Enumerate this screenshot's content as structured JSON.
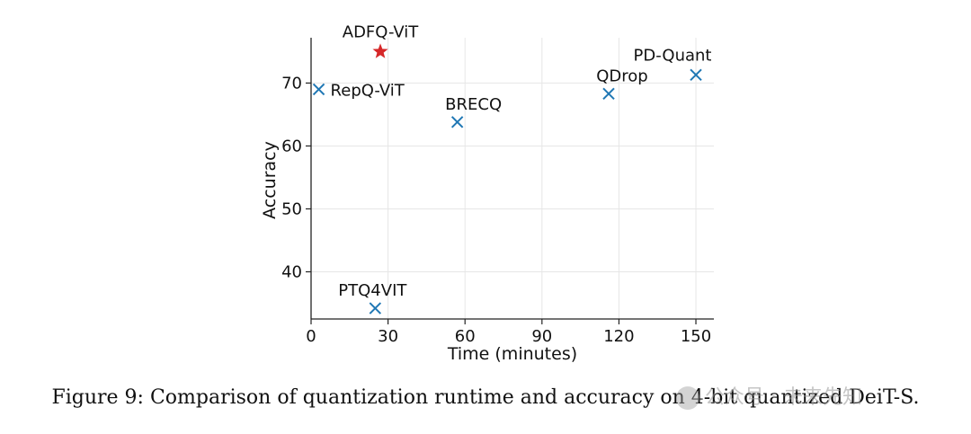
{
  "chart_data": {
    "type": "scatter",
    "xlabel": "Time (minutes)",
    "ylabel": "Accuracy",
    "xlim": [
      0,
      157
    ],
    "ylim": [
      32.5,
      77.2
    ],
    "xticks": [
      0,
      30,
      60,
      90,
      120,
      150
    ],
    "yticks": [
      40,
      50,
      60,
      70
    ],
    "grid": true,
    "points": [
      {
        "label": "ADFQ-ViT",
        "x": 27,
        "y": 75.0,
        "marker": "star",
        "color": "#d62728"
      },
      {
        "label": "RepQ-ViT",
        "x": 3,
        "y": 69.0,
        "marker": "x",
        "color": "#1f77b4"
      },
      {
        "label": "BRECQ",
        "x": 57,
        "y": 63.8,
        "marker": "x",
        "color": "#1f77b4"
      },
      {
        "label": "QDrop",
        "x": 116,
        "y": 68.3,
        "marker": "x",
        "color": "#1f77b4"
      },
      {
        "label": "PD-Quant",
        "x": 150,
        "y": 71.3,
        "marker": "x",
        "color": "#1f77b4"
      },
      {
        "label": "PTQ4VIT",
        "x": 25,
        "y": 34.2,
        "marker": "x",
        "color": "#1f77b4"
      }
    ]
  },
  "caption": "Figure 9: Comparison of quantization runtime and accuracy on 4-bit quantized DeiT-S.",
  "watermark": "公众号 · 未来先知"
}
